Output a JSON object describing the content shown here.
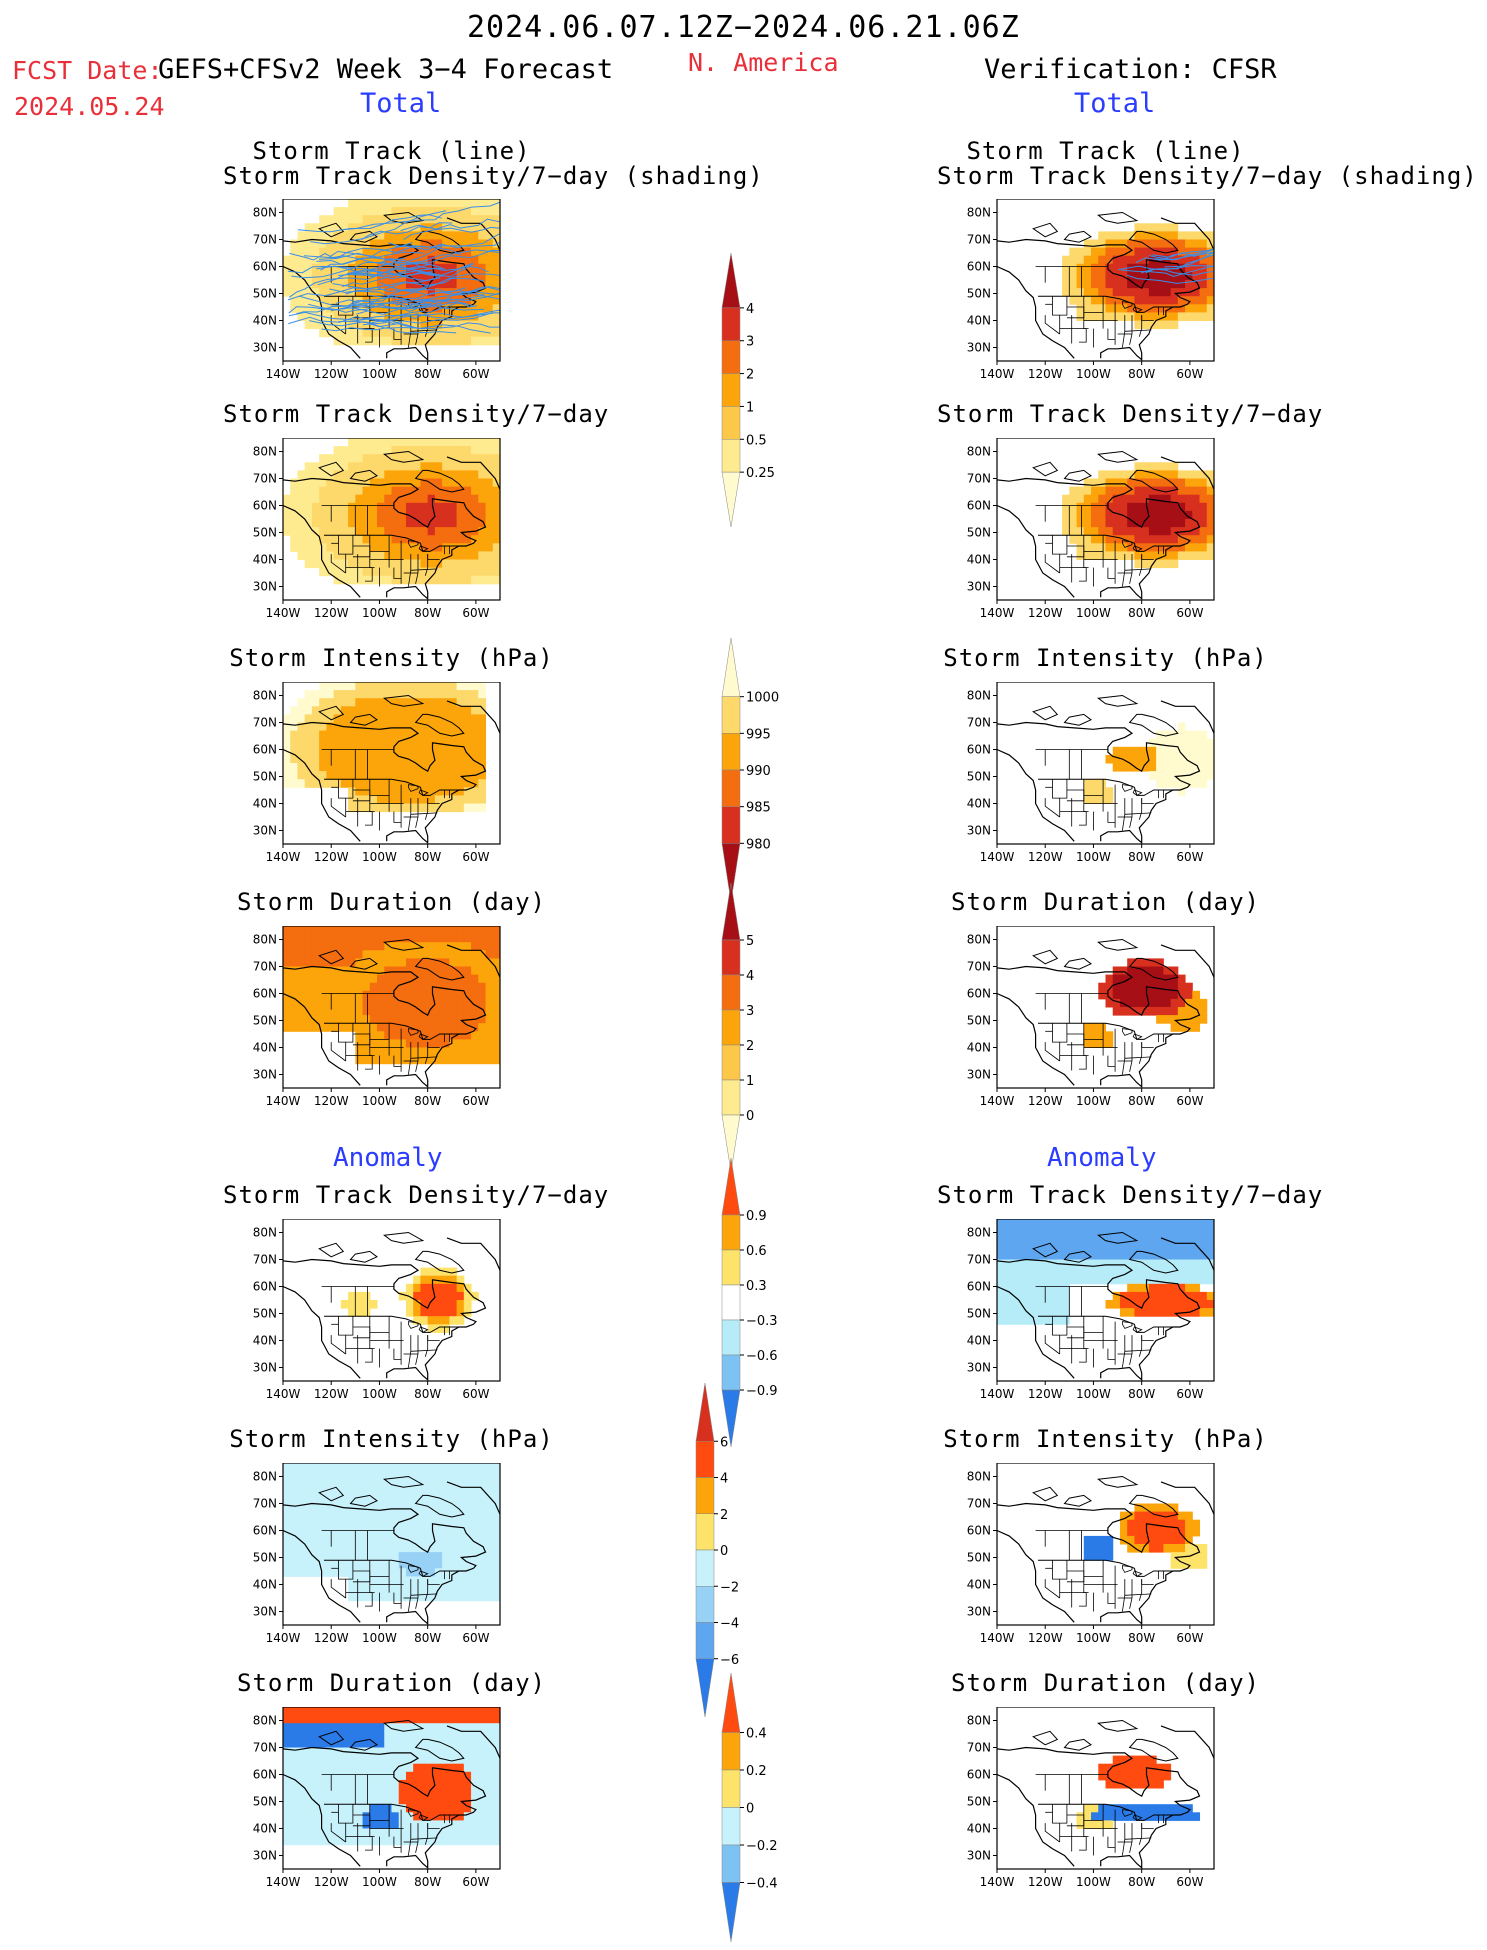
{
  "header": {
    "period": "2024.06.07.12Z−2024.06.21.06Z",
    "fcst_label": "FCST Date:",
    "fcst_model": "GEFS+CFSv2 Week 3−4 Forecast",
    "fcst_date": "2024.05.24",
    "region": "N. America",
    "verification": "Verification: CFSR",
    "total_left": "Total",
    "total_right": "Total"
  },
  "section_labels": {
    "anomaly_left": "Anomaly",
    "anomaly_right": "Anomaly"
  },
  "axis": {
    "lat_labels": [
      "80N",
      "70N",
      "60N",
      "50N",
      "40N",
      "30N"
    ],
    "lon_labels": [
      "140W",
      "120W",
      "100W",
      "80W",
      "60W"
    ]
  },
  "panels": {
    "fc_track": [
      "Storm Track (line)",
      "Storm Track Density/7−day (shading)"
    ],
    "fc_density": "Storm Track Density/7−day",
    "fc_intensity": "Storm Intensity (hPa)",
    "fc_duration": "Storm Duration (day)",
    "fc_anom_density": "Storm Track Density/7−day",
    "fc_anom_intensity": "Storm Intensity (hPa)",
    "fc_anom_duration": "Storm Duration (day)",
    "vf_track": [
      "Storm Track (line)",
      "Storm Track Density/7−day (shading)"
    ],
    "vf_density": "Storm Track Density/7−day",
    "vf_intensity": "Storm Intensity (hPa)",
    "vf_duration": "Storm Duration (day)",
    "vf_anom_density": "Storm Track Density/7−day",
    "vf_anom_intensity": "Storm Intensity (hPa)",
    "vf_anom_duration": "Storm Duration (day)"
  },
  "colorbars": {
    "density": {
      "labels": [
        "4",
        "3",
        "2",
        "1",
        "0.5",
        "0.25"
      ],
      "colors": [
        "#a50f15",
        "#d7301f",
        "#f46d0f",
        "#fca50a",
        "#fdc84a",
        "#feeb8f",
        "#fffbcf"
      ]
    },
    "intensity": {
      "labels": [
        "1000",
        "995",
        "990",
        "985",
        "980"
      ],
      "colors": [
        "#fffbcf",
        "#fdd86a",
        "#fca50a",
        "#f46d0f",
        "#d7301f",
        "#a50f15"
      ]
    },
    "duration": {
      "labels": [
        "5",
        "4",
        "3",
        "2",
        "1",
        "0"
      ],
      "colors": [
        "#a50f15",
        "#d7301f",
        "#f46d0f",
        "#fca50a",
        "#fdc84a",
        "#feeb8f",
        "#fffbcf"
      ]
    },
    "anom_density": {
      "labels": [
        "0.9",
        "0.6",
        "0.3",
        "−0.3",
        "−0.6",
        "−0.9"
      ],
      "colors": [
        "#ff4a10",
        "#fca50a",
        "#fde36a",
        "#ffffff",
        "#b6ecf8",
        "#7cc3f4",
        "#2a7ae8"
      ]
    },
    "anom_intensity": {
      "labels": [
        "6",
        "4",
        "2",
        "0",
        "−2",
        "−4",
        "−6"
      ],
      "colors": [
        "#d7301f",
        "#ff4a10",
        "#fca50a",
        "#fde36a",
        "#c8f2fb",
        "#98d1f6",
        "#5ea6ef",
        "#2a7ae8"
      ]
    },
    "anom_duration": {
      "labels": [
        "0.4",
        "0.2",
        "0",
        "−0.2",
        "−0.4"
      ],
      "colors": [
        "#ff4a10",
        "#fca50a",
        "#fde36a",
        "#c8f2fb",
        "#7cc3f4",
        "#2a7ae8"
      ]
    }
  },
  "colors": {
    "red_text": "#e8303a",
    "blue_text": "#2a3cff",
    "track_line": "#3a8ee8"
  }
}
